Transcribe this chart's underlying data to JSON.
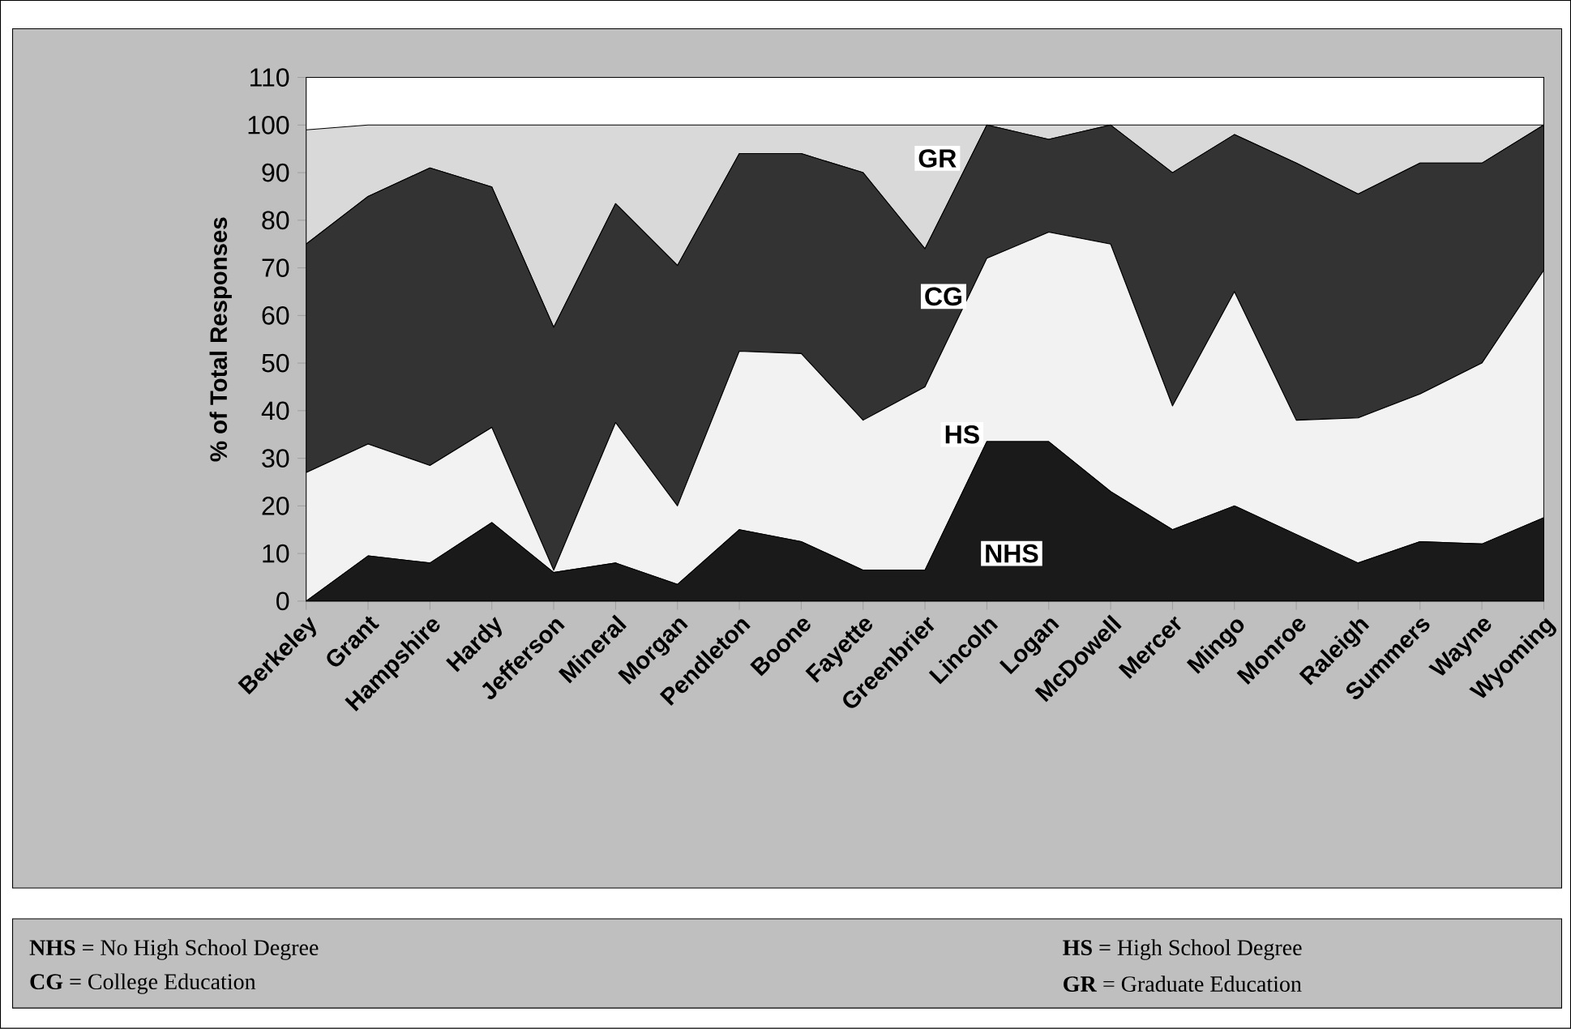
{
  "chart_data": {
    "type": "area",
    "stacked": true,
    "ylabel": "% of Total Responses",
    "categories": [
      "Berkeley",
      "Grant",
      "Hampshire",
      "Hardy",
      "Jefferson",
      "Mineral",
      "Morgan",
      "Pendleton",
      "Boone",
      "Fayette",
      "Greenbrier",
      "Lincoln",
      "Logan",
      "McDowell",
      "Mercer",
      "Mingo",
      "Monroe",
      "Raleigh",
      "Summers",
      "Wayne",
      "Wyoming"
    ],
    "ylim": [
      0,
      110
    ],
    "yticks": [
      0,
      10,
      20,
      30,
      40,
      50,
      60,
      70,
      80,
      90,
      100,
      110
    ],
    "legend": false,
    "grid": false,
    "series": [
      {
        "name": "NHS",
        "color": "#1a1a1a",
        "values": [
          0,
          9.5,
          8,
          16.5,
          6,
          8,
          3.5,
          15,
          12.5,
          6.5,
          6.5,
          33.5,
          33.5,
          23,
          15,
          20,
          14,
          8,
          12.5,
          12,
          17.5
        ]
      },
      {
        "name": "HS",
        "color": "#f2f2f2",
        "values": [
          27,
          23.5,
          20.5,
          20,
          0.5,
          29.5,
          16.5,
          37.5,
          39.5,
          31.5,
          38.5,
          38.5,
          44,
          52,
          26,
          45,
          24,
          30.5,
          31,
          38,
          52
        ]
      },
      {
        "name": "CG",
        "color": "#333333",
        "values": [
          48,
          52,
          62.5,
          50.5,
          51,
          46,
          50.5,
          41.5,
          42,
          52,
          29,
          28,
          19.5,
          25,
          49,
          33,
          54,
          47,
          48.5,
          42,
          30.5
        ]
      },
      {
        "name": "GR",
        "color": "#d9d9d9",
        "values": [
          24,
          15,
          9,
          13,
          42.5,
          16.5,
          29.5,
          6,
          6,
          10,
          26,
          0,
          3,
          0,
          10,
          2,
          8,
          14.5,
          8,
          8,
          0
        ]
      }
    ],
    "annotations": [
      "**NHS** = No High School Degree",
      "**HS** = High School Degree",
      "**CG** = College Education",
      "**GR** = Graduate Education"
    ]
  }
}
